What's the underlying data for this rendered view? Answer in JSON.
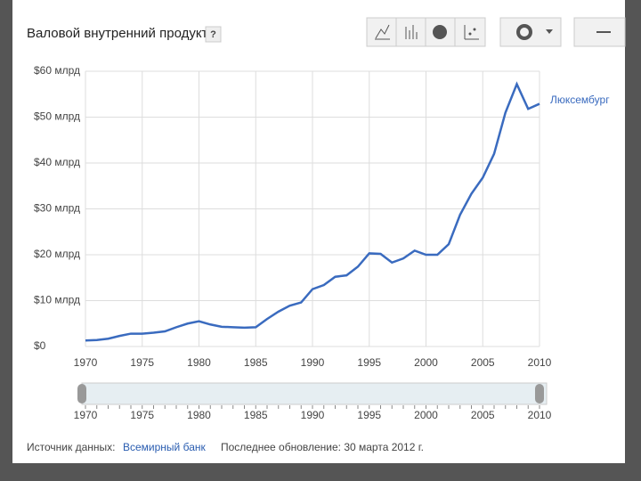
{
  "title": "Валовой внутренний продукт",
  "help": "?",
  "source_label": "Источник данных:",
  "source_link": "Всемирный банк",
  "updated": "Последнее обновление: 30 марта 2012 г.",
  "chart_data": {
    "type": "line",
    "x": [
      1970,
      1971,
      1972,
      1973,
      1974,
      1975,
      1976,
      1977,
      1978,
      1979,
      1980,
      1981,
      1982,
      1983,
      1984,
      1985,
      1986,
      1987,
      1988,
      1989,
      1990,
      1991,
      1992,
      1993,
      1994,
      1995,
      1996,
      1997,
      1998,
      1999,
      2000,
      2001,
      2002,
      2003,
      2004,
      2005,
      2006,
      2007,
      2008,
      2009,
      2010
    ],
    "series": [
      {
        "name": "Люксембург",
        "color": "#3a6bbf",
        "values": [
          1.3,
          1.4,
          1.7,
          2.3,
          2.8,
          2.8,
          3.0,
          3.3,
          4.2,
          5.0,
          5.5,
          4.8,
          4.3,
          4.2,
          4.1,
          4.2,
          6.0,
          7.6,
          8.9,
          9.6,
          12.5,
          13.4,
          15.2,
          15.5,
          17.4,
          20.3,
          20.2,
          18.3,
          19.2,
          20.9,
          20.0,
          20.0,
          22.3,
          28.7,
          33.3,
          36.8,
          42.0,
          51.0,
          57.2,
          51.8,
          52.9
        ]
      }
    ],
    "xlim": [
      1970,
      2010
    ],
    "xticks": [
      1970,
      1975,
      1980,
      1985,
      1990,
      1995,
      2000,
      2005,
      2010
    ],
    "ylim": [
      0,
      60
    ],
    "yticks": [
      {
        "value": 0,
        "label": "$0"
      },
      {
        "value": 10,
        "label": "$10 млрд"
      },
      {
        "value": 20,
        "label": "$20 млрд"
      },
      {
        "value": 30,
        "label": "$30 млрд"
      },
      {
        "value": 40,
        "label": "$40 млрд"
      },
      {
        "value": 50,
        "label": "$50 млрд"
      },
      {
        "value": 60,
        "label": "$60 млрд"
      }
    ],
    "grid": true
  }
}
